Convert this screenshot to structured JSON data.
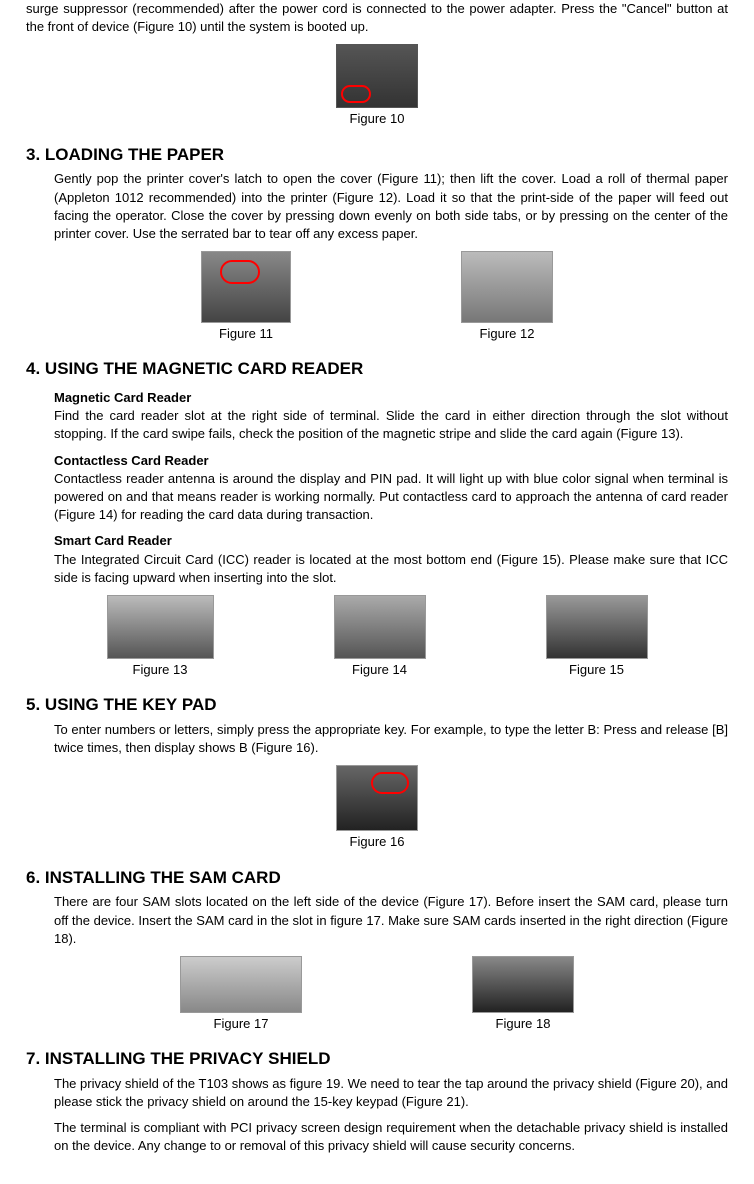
{
  "intro": "surge suppressor (recommended) after the power cord is connected to the power adapter. Press the \"Cancel\" button at the front of device (Figure 10) until the system is booted up.",
  "fig10": {
    "caption": "Figure 10"
  },
  "s3": {
    "title_num": "3.",
    "title_main": "LOADING THE",
    "title_last": "PAPER",
    "body": "Gently pop the printer cover's latch to open the cover (Figure 11); then lift the cover. Load a roll of thermal paper (Appleton 1012 recommended) into the printer (Figure 12). Load it so that the print-side of the paper will feed out facing the operator. Close the cover by pressing down evenly on both side tabs, or by pressing on the center of the printer cover. Use the serrated bar to tear off any excess paper."
  },
  "fig11": {
    "caption": "Figure 11"
  },
  "fig12": {
    "caption": "Figure 12"
  },
  "s4": {
    "title_num": "4.",
    "title_w1": "USING THE",
    "title_w2": "MAGNETIC",
    "title_w3": "CARD",
    "title_w4": "READER",
    "sub1": "Magnetic Card Reader",
    "body1": "Find the card reader slot at the right side of terminal. Slide the card in either direction through the slot without stopping. If the card swipe fails, check the position of the magnetic stripe and slide the card again (Figure 13).",
    "sub2": "Contactless Card Reader",
    "body2": "Contactless reader antenna is around the display and PIN pad. It will light up with blue color signal when terminal is powered on and that means reader is working normally. Put contactless card to approach the antenna of card reader (Figure 14) for reading the card data during transaction.",
    "sub3": "Smart Card Reader",
    "body3": "The Integrated Circuit Card (ICC) reader is located at the most bottom end (Figure 15). Please make sure that ICC side is facing upward when inserting into the slot."
  },
  "fig13": {
    "caption": "Figure 13"
  },
  "fig14": {
    "caption": "Figure 14"
  },
  "fig15": {
    "caption": "Figure 15"
  },
  "s5": {
    "title_num": "5.",
    "title_w1": "USING THE",
    "title_w2": "KEY",
    "title_w3": "PAD",
    "body": "To enter numbers or letters, simply press the appropriate key. For example, to type the letter B: Press and release [B] twice times, then display shows B (Figure 16)."
  },
  "fig16": {
    "caption": "Figure 16"
  },
  "s6": {
    "title_num": "6.",
    "title_w1": "INSTALLING THE",
    "title_w2": "SAM",
    "title_w3": "CARD",
    "body": "There are four SAM slots located on the left side of the device (Figure 17). Before insert the SAM card, please turn off the device. Insert the SAM card in the slot in figure 17. Make sure SAM cards inserted in the right direction (Figure 18)."
  },
  "fig17": {
    "caption": "Figure 17"
  },
  "fig18": {
    "caption": "Figure 18"
  },
  "s7": {
    "title_num": "7.",
    "title_w1": "INSTALLING THE",
    "title_w2": "PRIVACY",
    "title_w3": "SHIELD",
    "body1": "The privacy shield of the T103 shows as figure 19. We need to tear the tap around the privacy shield (Figure 20), and please stick the privacy shield on around the 15-key keypad (Figure 21).",
    "body2": "The terminal is compliant with PCI privacy screen design requirement when the detachable privacy shield is installed on the device. Any change to or removal of this privacy shield will cause security concerns."
  }
}
